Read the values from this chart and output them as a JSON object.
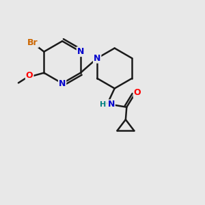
{
  "background_color": "#e8e8e8",
  "atom_colors": {
    "C": "#000000",
    "N": "#0000cc",
    "O": "#ff0000",
    "Br": "#cc6600",
    "H": "#008080"
  },
  "bond_color": "#1a1a1a",
  "bond_width": 1.8,
  "figsize": [
    3.0,
    3.0
  ],
  "dpi": 100,
  "xlim": [
    0,
    10
  ],
  "ylim": [
    0,
    10
  ]
}
